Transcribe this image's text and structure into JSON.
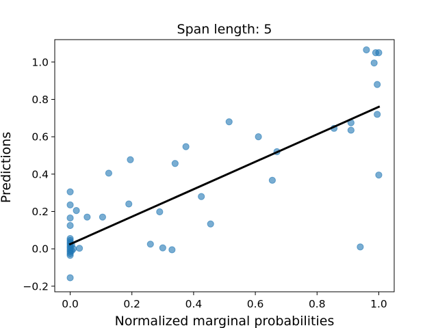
{
  "chart_data": {
    "type": "scatter",
    "title": "Span length: 5",
    "xlabel": "Normalized marginal probabilities",
    "ylabel": "Predictions",
    "xlim": [
      -0.05,
      1.05
    ],
    "ylim": [
      -0.23,
      1.12
    ],
    "xticks": [
      0.0,
      0.2,
      0.4,
      0.6,
      0.8,
      1.0
    ],
    "xtick_labels": [
      "0.0",
      "0.2",
      "0.4",
      "0.6",
      "0.8",
      "1.0"
    ],
    "yticks": [
      -0.2,
      0.0,
      0.2,
      0.4,
      0.6,
      0.8,
      1.0
    ],
    "ytick_labels": [
      "−0.2",
      "0.0",
      "0.2",
      "0.4",
      "0.6",
      "0.8",
      "1.0"
    ],
    "grid": false,
    "point_color": "#1f77b4",
    "line_color": "#000000",
    "points": [
      {
        "x": 0.0,
        "y": 0.305
      },
      {
        "x": 0.0,
        "y": 0.235
      },
      {
        "x": 0.0,
        "y": 0.165
      },
      {
        "x": 0.0,
        "y": 0.125
      },
      {
        "x": 0.0,
        "y": 0.055
      },
      {
        "x": 0.0,
        "y": 0.045
      },
      {
        "x": 0.0,
        "y": 0.035
      },
      {
        "x": 0.0,
        "y": 0.025
      },
      {
        "x": 0.0,
        "y": 0.015
      },
      {
        "x": 0.0,
        "y": 0.005
      },
      {
        "x": 0.0,
        "y": -0.005
      },
      {
        "x": 0.0,
        "y": -0.015
      },
      {
        "x": 0.0,
        "y": -0.025
      },
      {
        "x": 0.0,
        "y": -0.035
      },
      {
        "x": 0.0,
        "y": -0.155
      },
      {
        "x": 0.005,
        "y": 0.02
      },
      {
        "x": 0.005,
        "y": -0.01
      },
      {
        "x": 0.01,
        "y": 0.0
      },
      {
        "x": 0.02,
        "y": 0.205
      },
      {
        "x": 0.03,
        "y": 0.003
      },
      {
        "x": 0.055,
        "y": 0.17
      },
      {
        "x": 0.105,
        "y": 0.17
      },
      {
        "x": 0.125,
        "y": 0.405
      },
      {
        "x": 0.19,
        "y": 0.24
      },
      {
        "x": 0.195,
        "y": 0.477
      },
      {
        "x": 0.26,
        "y": 0.025
      },
      {
        "x": 0.29,
        "y": 0.198
      },
      {
        "x": 0.3,
        "y": 0.005
      },
      {
        "x": 0.33,
        "y": -0.005
      },
      {
        "x": 0.34,
        "y": 0.457
      },
      {
        "x": 0.375,
        "y": 0.547
      },
      {
        "x": 0.425,
        "y": 0.28
      },
      {
        "x": 0.455,
        "y": 0.133
      },
      {
        "x": 0.515,
        "y": 0.68
      },
      {
        "x": 0.61,
        "y": 0.6
      },
      {
        "x": 0.655,
        "y": 0.367
      },
      {
        "x": 0.67,
        "y": 0.52
      },
      {
        "x": 0.855,
        "y": 0.645
      },
      {
        "x": 0.91,
        "y": 0.675
      },
      {
        "x": 0.91,
        "y": 0.635
      },
      {
        "x": 0.94,
        "y": 0.01
      },
      {
        "x": 0.96,
        "y": 1.065
      },
      {
        "x": 0.985,
        "y": 0.995
      },
      {
        "x": 0.99,
        "y": 1.05
      },
      {
        "x": 0.995,
        "y": 0.72
      },
      {
        "x": 0.995,
        "y": 0.88
      },
      {
        "x": 1.0,
        "y": 1.05
      },
      {
        "x": 1.0,
        "y": 0.395
      }
    ],
    "fit_line": {
      "x": [
        0.0,
        1.0
      ],
      "y": [
        0.025,
        0.76
      ]
    }
  }
}
